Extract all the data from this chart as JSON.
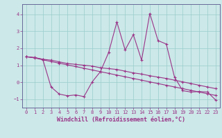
{
  "xlabel": "Windchill (Refroidissement éolien,°C)",
  "bg_color": "#cce8e8",
  "line_color": "#993388",
  "grid_color": "#99cccc",
  "spine_color": "#666699",
  "xlim": [
    -0.5,
    23.5
  ],
  "ylim": [
    -1.5,
    4.6
  ],
  "yticks": [
    -1,
    0,
    1,
    2,
    3,
    4
  ],
  "xticks": [
    0,
    1,
    2,
    3,
    4,
    5,
    6,
    7,
    8,
    9,
    10,
    11,
    12,
    13,
    14,
    15,
    16,
    17,
    18,
    19,
    20,
    21,
    22,
    23
  ],
  "series1": [
    1.5,
    1.45,
    1.35,
    1.3,
    1.2,
    1.1,
    1.05,
    1.0,
    0.95,
    0.85,
    0.8,
    0.75,
    0.65,
    0.55,
    0.48,
    0.38,
    0.3,
    0.22,
    0.12,
    0.02,
    -0.08,
    -0.18,
    -0.28,
    -0.38
  ],
  "series2": [
    1.5,
    1.43,
    1.32,
    1.22,
    1.12,
    1.02,
    0.92,
    0.82,
    0.72,
    0.62,
    0.52,
    0.42,
    0.32,
    0.22,
    0.12,
    0.02,
    -0.08,
    -0.18,
    -0.28,
    -0.38,
    -0.48,
    -0.58,
    -0.68,
    -0.78
  ],
  "series3": [
    1.5,
    1.45,
    1.35,
    -0.28,
    -0.7,
    -0.8,
    -0.75,
    -0.85,
    0.02,
    0.62,
    1.75,
    3.55,
    1.9,
    2.8,
    1.3,
    4.05,
    2.45,
    2.25,
    0.3,
    -0.5,
    -0.58,
    -0.55,
    -0.58,
    -1.05
  ],
  "marker": "+",
  "markersize": 3,
  "markeredgewidth": 0.8,
  "linewidth": 0.8,
  "tick_fontsize": 5,
  "xlabel_fontsize": 6
}
